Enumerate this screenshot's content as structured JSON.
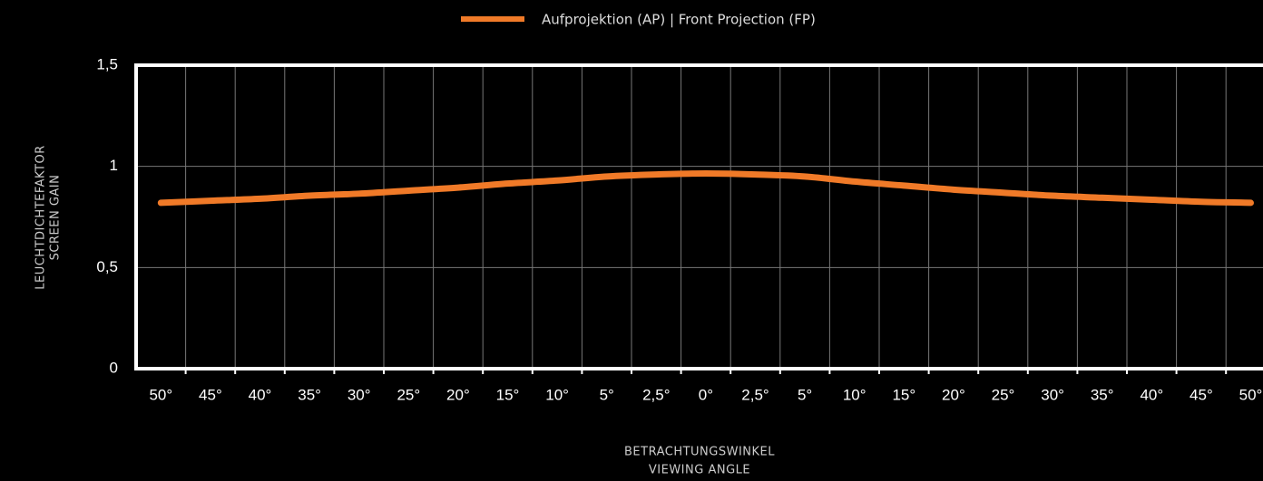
{
  "chart_data": {
    "type": "line",
    "xlabel": [
      "BETRACHTUNGSWINKEL",
      "VIEWING ANGLE"
    ],
    "ylabel": [
      "LEUCHTDICHTEFAKTOR",
      "SCREEN GAIN"
    ],
    "categories": [
      "50°",
      "45°",
      "40°",
      "35°",
      "30°",
      "25°",
      "20°",
      "15°",
      "10°",
      "5°",
      "2,5°",
      "0°",
      "2,5°",
      "5°",
      "10°",
      "15°",
      "20°",
      "25°",
      "30°",
      "35°",
      "40°",
      "45°",
      "50°"
    ],
    "series": [
      {
        "name": "Aufprojektion (AP) | Front Projection (FP)",
        "color": "#f07a28",
        "values": [
          0.82,
          0.83,
          0.84,
          0.855,
          0.865,
          0.88,
          0.895,
          0.915,
          0.93,
          0.95,
          0.96,
          0.965,
          0.96,
          0.95,
          0.925,
          0.905,
          0.885,
          0.87,
          0.855,
          0.845,
          0.835,
          0.825,
          0.82
        ]
      }
    ],
    "ylim": [
      0,
      1.5
    ],
    "yticks": [
      0,
      {
        "value": 0.5,
        "label": "0,5"
      },
      1,
      {
        "value": 1.5,
        "label": "1,5"
      }
    ],
    "grid": true,
    "legend": "top"
  }
}
